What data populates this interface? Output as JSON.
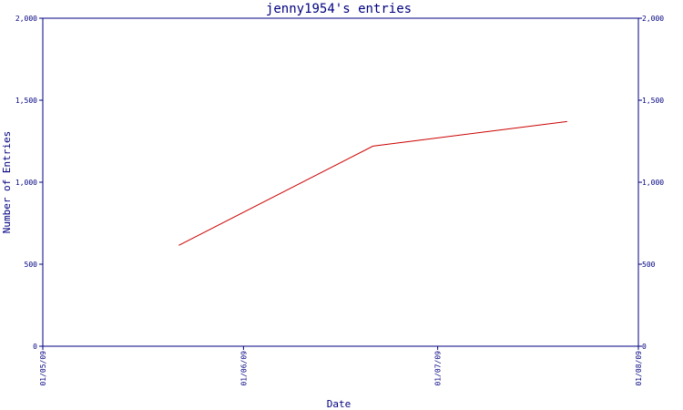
{
  "chart_data": {
    "type": "line",
    "title": "jenny1954's entries",
    "xlabel": "Date",
    "ylabel": "Number of Entries",
    "x_ticks": [
      "01/05/09",
      "01/06/09",
      "01/07/09",
      "01/08/09"
    ],
    "y_ticks": [
      "0",
      "500",
      "1,000",
      "1,500",
      "2,000"
    ],
    "ylim": [
      0,
      2000
    ],
    "series": [
      {
        "x": [
          "2009-05-22",
          "2009-06-21",
          "2009-07-21"
        ],
        "values": [
          615,
          1220,
          1370
        ]
      }
    ],
    "grid": false,
    "axis_color": "#000080",
    "line_color": "#cc0000"
  }
}
